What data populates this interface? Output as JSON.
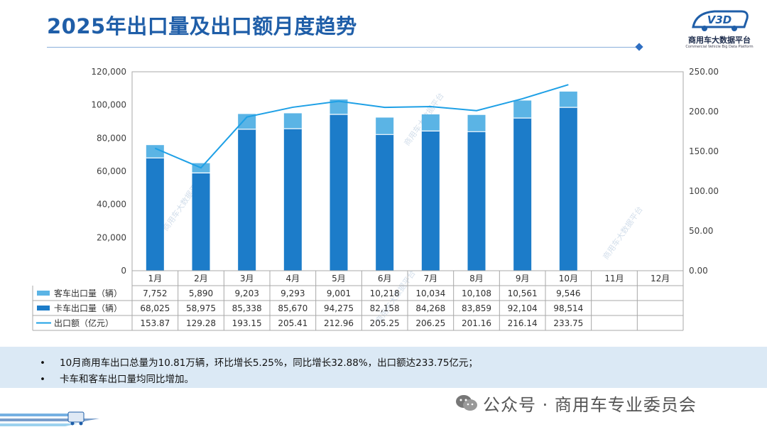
{
  "page": {
    "title": "2025年出口量及出口额月度趋势",
    "logo": {
      "mark": "V3D",
      "name": "商用车大数据平台",
      "subtitle": "Commercial Vehicle Big Data Platform"
    }
  },
  "chart_data": {
    "type": "bar",
    "stacked": true,
    "categories": [
      "1月",
      "2月",
      "3月",
      "4月",
      "5月",
      "6月",
      "7月",
      "8月",
      "9月",
      "10月",
      "11月",
      "12月"
    ],
    "left_axis": {
      "min": 0,
      "max": 120000,
      "ticks": [
        "0",
        "20,000",
        "40,000",
        "60,000",
        "80,000",
        "100,000",
        "120,000"
      ]
    },
    "right_axis": {
      "min": 0,
      "max": 250,
      "ticks": [
        "0.00",
        "50.00",
        "100.00",
        "150.00",
        "200.00",
        "250.00"
      ]
    },
    "series": [
      {
        "name": "客车出口量（辆）",
        "kind": "bar",
        "axis": "left",
        "color": "#5bb4e5",
        "values": [
          7752,
          5890,
          9203,
          9293,
          9001,
          10218,
          10034,
          10108,
          10561,
          9546,
          null,
          null
        ],
        "labels": [
          "7,752",
          "5,890",
          "9,203",
          "9,293",
          "9,001",
          "10,218",
          "10,034",
          "10,108",
          "10,561",
          "9,546",
          "",
          ""
        ]
      },
      {
        "name": "卡车出口量（辆）",
        "kind": "bar",
        "axis": "left",
        "color": "#1c7cc9",
        "values": [
          68025,
          58975,
          85338,
          85670,
          94275,
          82158,
          84268,
          83859,
          92104,
          98514,
          null,
          null
        ],
        "labels": [
          "68,025",
          "58,975",
          "85,338",
          "85,670",
          "94,275",
          "82,158",
          "84,268",
          "83,859",
          "92,104",
          "98,514",
          "",
          ""
        ]
      },
      {
        "name": "出口额（亿元）",
        "kind": "line",
        "axis": "right",
        "color": "#1ea0e6",
        "values": [
          153.87,
          129.28,
          193.15,
          205.41,
          212.96,
          205.25,
          206.25,
          201.16,
          216.14,
          233.75,
          null,
          null
        ],
        "labels": [
          "153.87",
          "129.28",
          "193.15",
          "205.41",
          "212.96",
          "205.25",
          "206.25",
          "201.16",
          "216.14",
          "233.75",
          "",
          ""
        ]
      }
    ],
    "watermark": "商用车大数据平台"
  },
  "summary": {
    "bullet_mark": "•",
    "items": [
      "10月商用车出口总量为10.81万辆，环比增长5.25%，同比增长32.88%，出口额达233.75亿元；",
      "卡车和客车出口量均同比增加。"
    ]
  },
  "footer": {
    "watermark": "公众号 · 商用车专业委员会"
  }
}
